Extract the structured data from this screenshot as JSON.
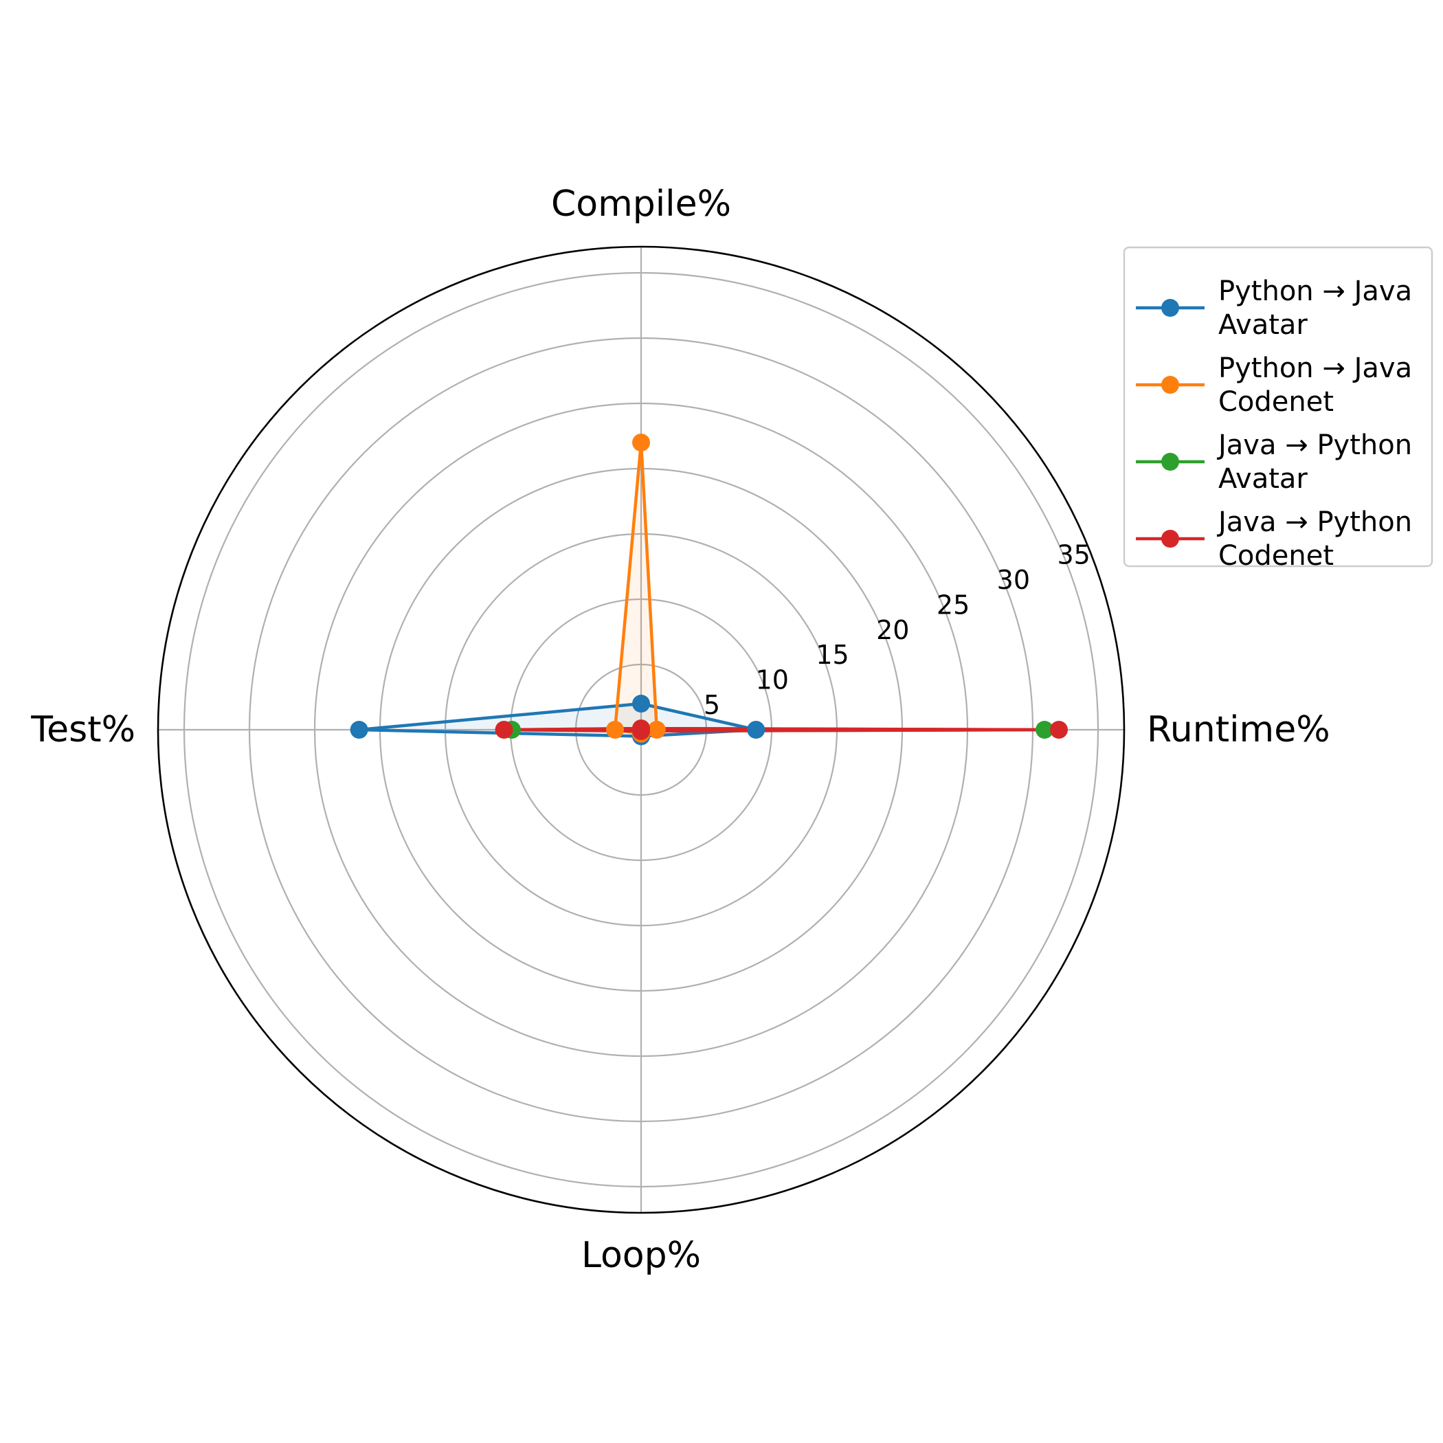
{
  "chart_data": {
    "type": "radar",
    "axes": [
      "Compile%",
      "Runtime%",
      "Loop%",
      "Test%"
    ],
    "rlim": [
      0,
      37
    ],
    "rticks": [
      5,
      10,
      15,
      20,
      25,
      30,
      35
    ],
    "rtick_labels": [
      "5",
      "10",
      "15",
      "20",
      "25",
      "30",
      "35"
    ],
    "grid": true,
    "legend_position": "upper-right-outside",
    "series": [
      {
        "name_line1": "Python → Java",
        "name_line2": "Avatar",
        "color": "#1f77b4",
        "values": [
          2.0,
          8.8,
          0.5,
          21.6
        ]
      },
      {
        "name_line1": "Python → Java",
        "name_line2": "Codenet",
        "color": "#ff7f0e",
        "values": [
          22.0,
          1.2,
          0.3,
          2.0
        ]
      },
      {
        "name_line1": "Java → Python",
        "name_line2": "Avatar",
        "color": "#2ca02c",
        "values": [
          0.1,
          30.9,
          0.1,
          9.9
        ]
      },
      {
        "name_line1": "Java → Python",
        "name_line2": "Codenet",
        "color": "#d62728",
        "values": [
          0.1,
          32.0,
          0.1,
          10.5
        ]
      }
    ]
  }
}
